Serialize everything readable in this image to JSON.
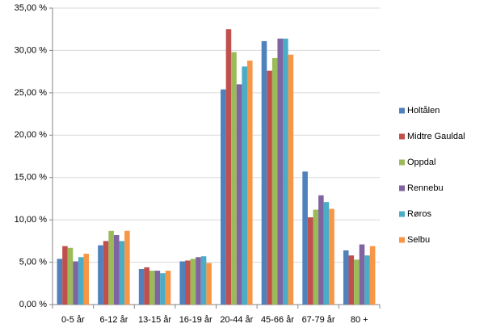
{
  "chart_data": {
    "type": "bar",
    "categories": [
      "0-5 år",
      "6-12 år",
      "13-15 år",
      "16-19 år",
      "20-44 år",
      "45-66 år",
      "67-79 år",
      "80 +"
    ],
    "series": [
      {
        "name": "Holtålen",
        "color": "#4f81bd",
        "values": [
          5.4,
          7.0,
          4.2,
          5.1,
          25.4,
          31.1,
          15.7,
          6.4
        ]
      },
      {
        "name": "Midtre Gauldal",
        "color": "#c0504d",
        "values": [
          6.9,
          7.5,
          4.4,
          5.2,
          32.5,
          27.6,
          10.3,
          5.8
        ]
      },
      {
        "name": "Oppdal",
        "color": "#9bbb59",
        "values": [
          6.7,
          8.7,
          4.0,
          5.4,
          29.8,
          29.1,
          11.2,
          5.3
        ]
      },
      {
        "name": "Rennebu",
        "color": "#8064a2",
        "values": [
          5.1,
          8.2,
          4.0,
          5.6,
          26.0,
          31.4,
          12.9,
          7.1
        ]
      },
      {
        "name": "Røros",
        "color": "#4bacc6",
        "values": [
          5.6,
          7.5,
          3.7,
          5.7,
          28.1,
          31.4,
          12.1,
          5.8
        ]
      },
      {
        "name": "Selbu",
        "color": "#f79646",
        "values": [
          6.0,
          8.7,
          4.0,
          4.9,
          28.8,
          29.5,
          11.3,
          6.9
        ]
      }
    ],
    "ylim": [
      0,
      35
    ],
    "yticks": [
      {
        "value": 0,
        "label": "0,00 %"
      },
      {
        "value": 5,
        "label": "5,00 %"
      },
      {
        "value": 10,
        "label": "10,00 %"
      },
      {
        "value": 15,
        "label": "15,00 %"
      },
      {
        "value": 20,
        "label": "20,00 %"
      },
      {
        "value": 25,
        "label": "25,00 %"
      },
      {
        "value": 30,
        "label": "30,00 %"
      },
      {
        "value": 35,
        "label": "35,00 %"
      }
    ],
    "grid": true,
    "legend": "right"
  }
}
